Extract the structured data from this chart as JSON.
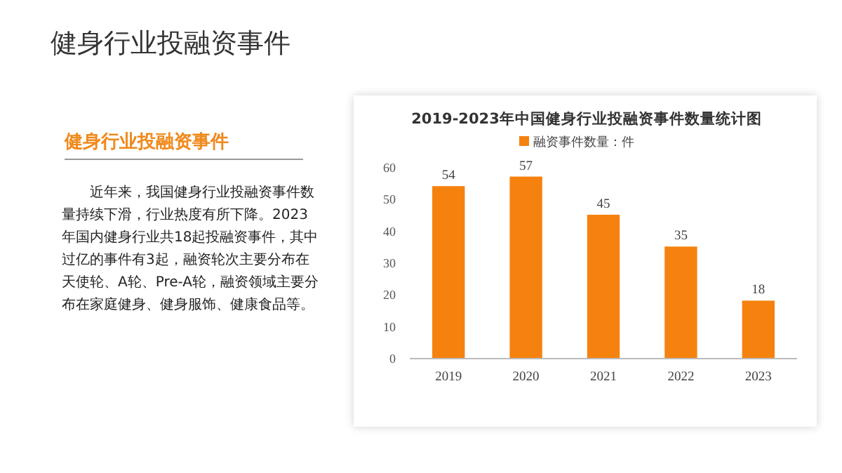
{
  "chart_data": {
    "type": "bar",
    "title": "2019-2023年中国健身行业投融资事件数量统计图",
    "categories": [
      "2019",
      "2020",
      "2021",
      "2022",
      "2023"
    ],
    "series": [
      {
        "name": "融资事件数量：件",
        "color": "#f5820f",
        "values": [
          54,
          57,
          45,
          35,
          18
        ]
      }
    ],
    "ylim": [
      0,
      60
    ],
    "yticks": [
      0,
      10,
      20,
      30,
      40,
      50,
      60
    ],
    "data_labels": true,
    "legend": "top",
    "annotations": [
      "健身行业投融资事件",
      "健身行业投融资事件",
      "近年来，我国健身行业投融资事件数量持续下滑，行业热度有所下降。2023年国内健身行业共18起投融资事件，其中过亿的事件有3起，融资轮次主要分布在天使轮、A轮、Pre-A轮，融资领域主要分布在家庭健身、健身服饰、健康食品等。"
    ]
  }
}
